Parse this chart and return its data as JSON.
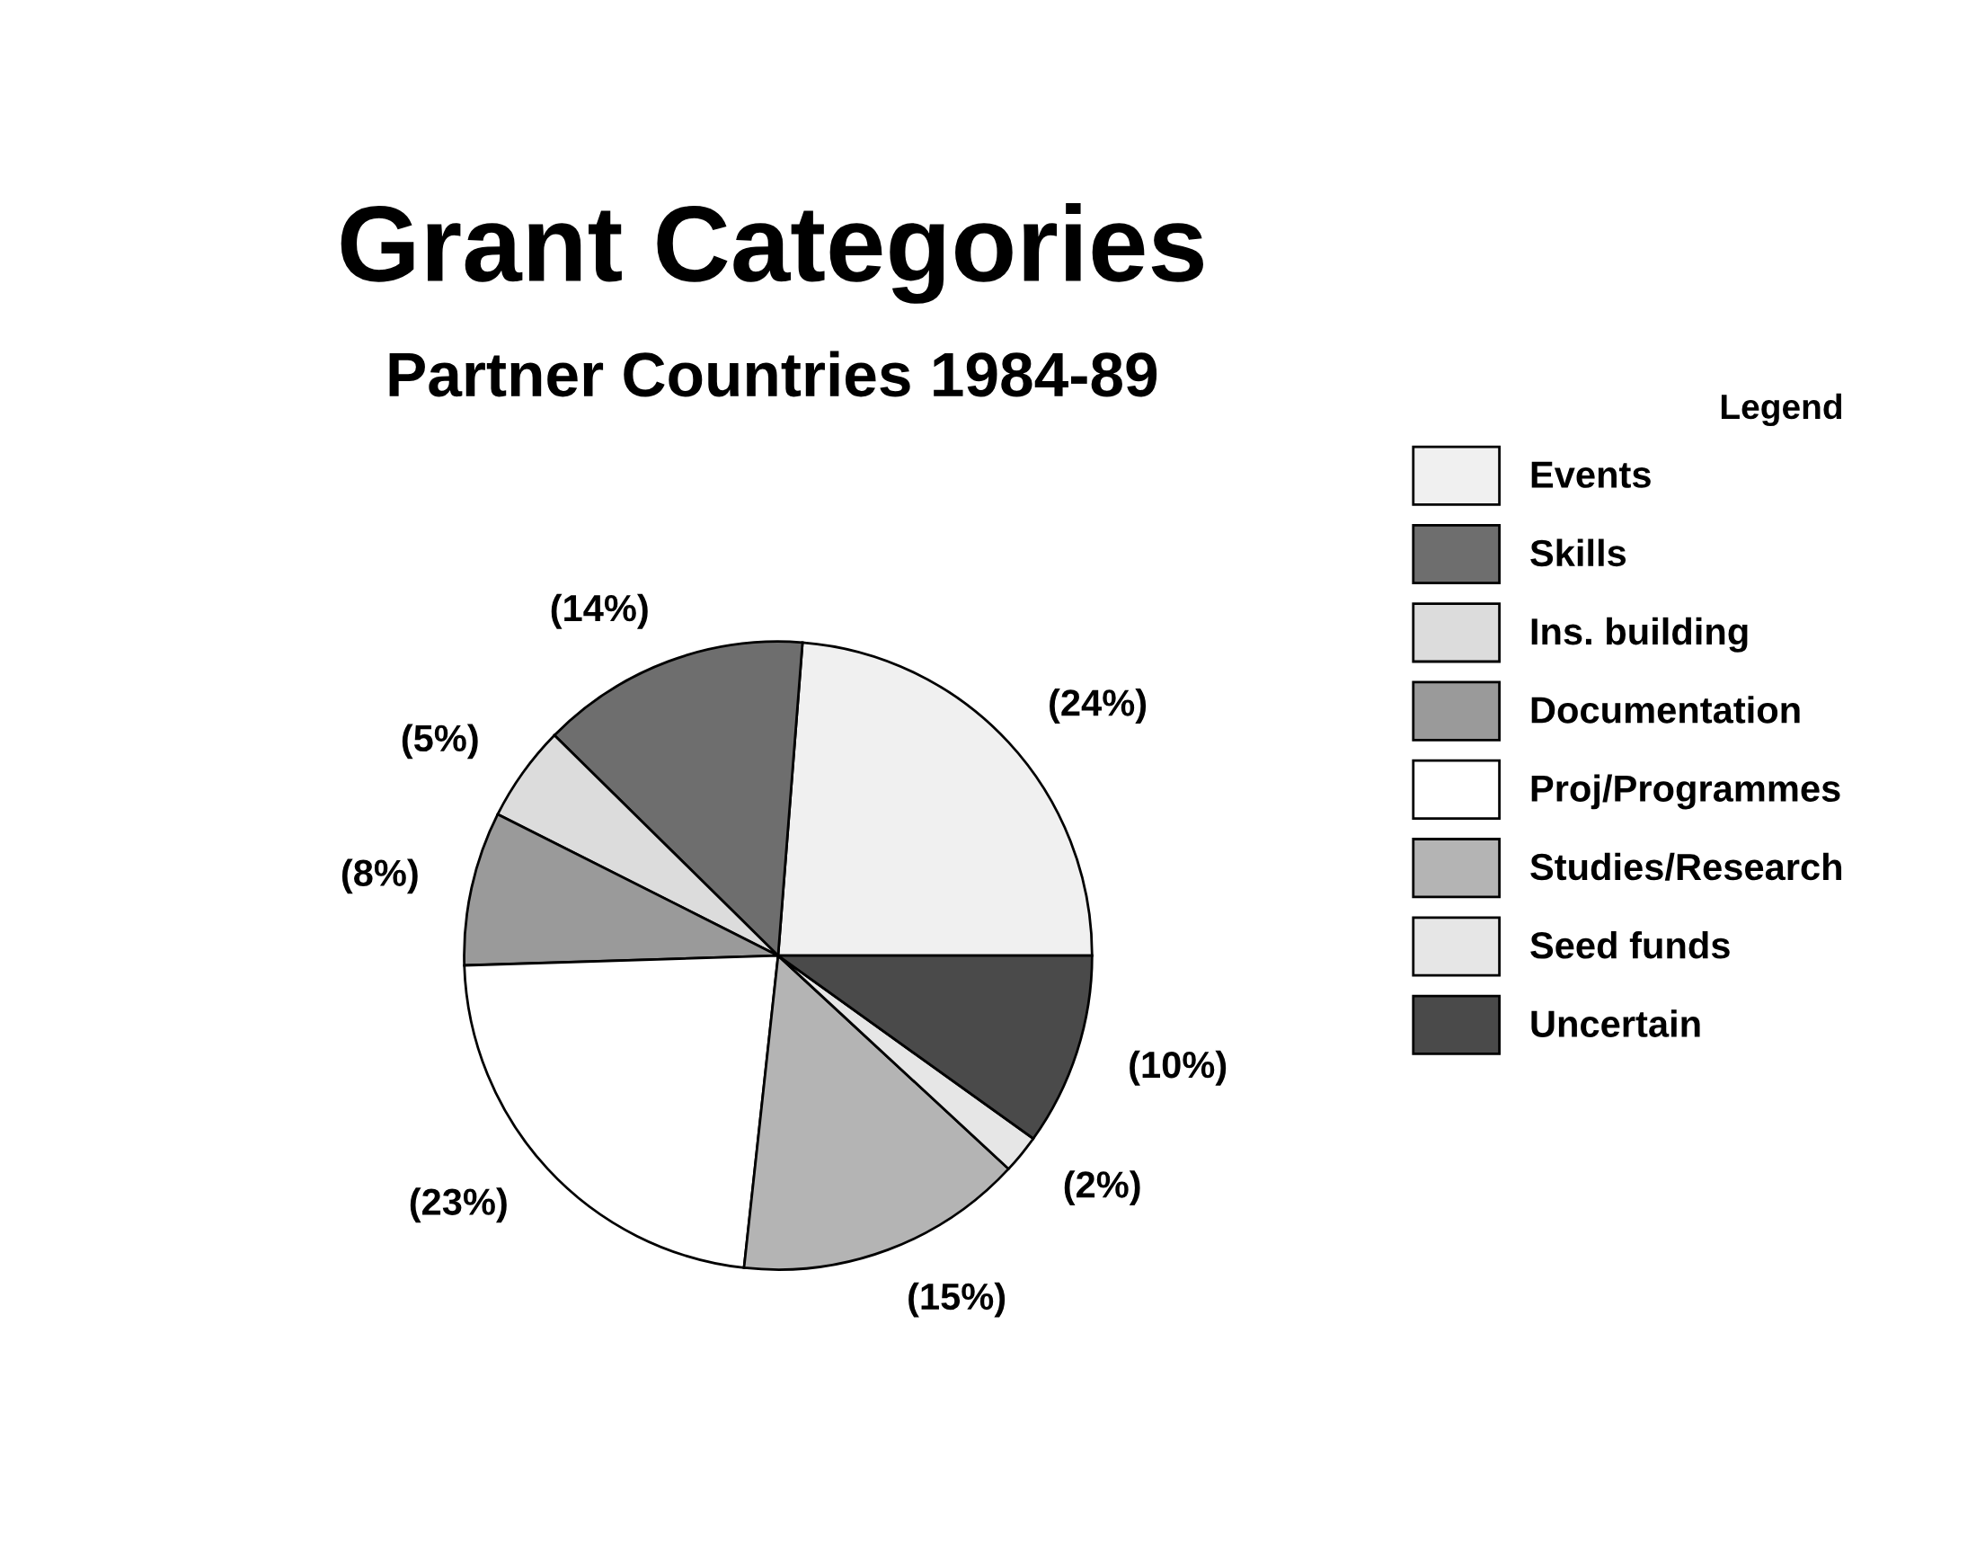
{
  "chart_data": {
    "type": "pie",
    "title": "Grant Categories",
    "subtitle": "Partner Countries 1984-89",
    "legend_title": "Legend",
    "legend": "right",
    "categories": [
      "Events",
      "Skills",
      "Ins. building",
      "Documentation",
      "Proj/Programmes",
      "Studies/Research",
      "Seed funds",
      "Uncertain"
    ],
    "values": [
      24,
      14,
      5,
      8,
      23,
      15,
      2,
      10
    ],
    "value_labels": [
      "(24%)",
      "(14%)",
      "(5%)",
      "(8%)",
      "(23%)",
      "(15%)",
      "(2%)",
      "(10%)"
    ],
    "colors": [
      "#f0f0f0",
      "#6e6e6e",
      "#dcdcdc",
      "#9a9a9a",
      "#ffffff",
      "#b4b4b4",
      "#e6e6e6",
      "#4a4a4a"
    ]
  }
}
